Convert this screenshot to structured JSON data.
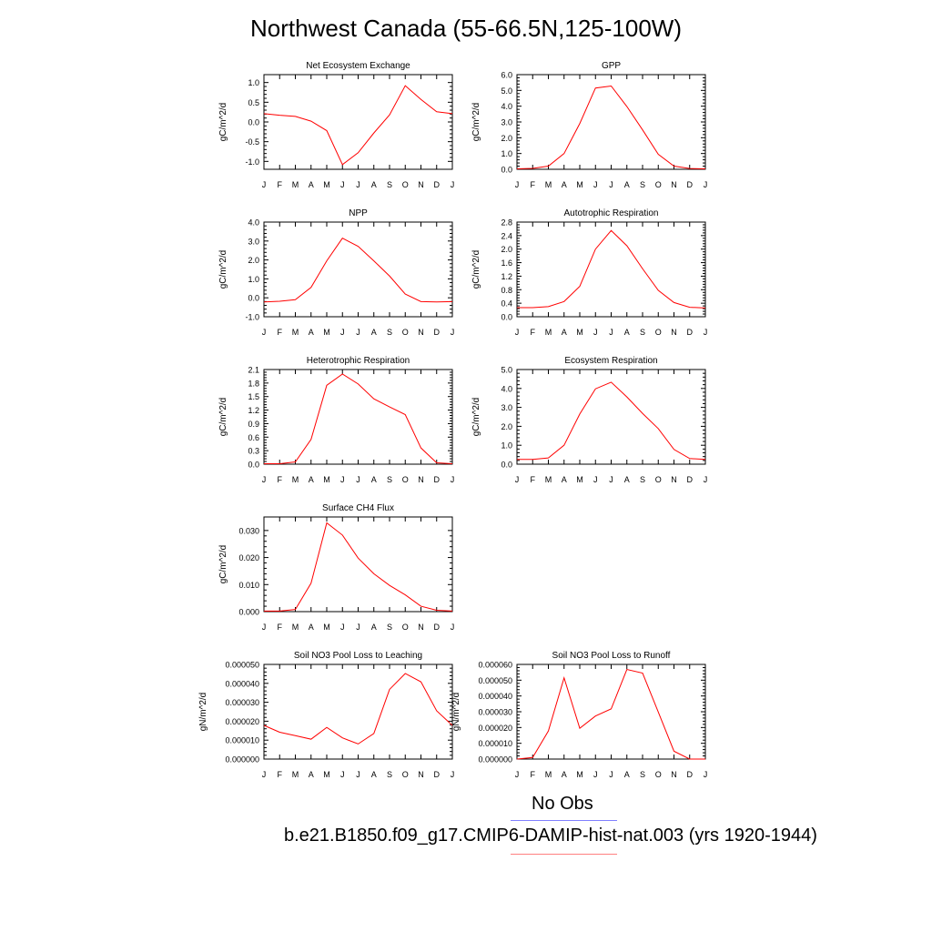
{
  "page": {
    "title": "Northwest Canada (55-66.5N,125-100W)"
  },
  "legend": [
    {
      "label": "No Obs",
      "color": "#8080ff"
    },
    {
      "label": "b.e21.B1850.f09_g17.CMIP6-DAMIP-hist-nat.003 (yrs 1920-1944)",
      "color": "#ff8080"
    }
  ],
  "line_color": "#ff0000",
  "chart_data": [
    {
      "type": "line",
      "title": "Net Ecosystem Exchange",
      "ylabel": "gC/m^2/d",
      "categories": [
        "J",
        "F",
        "M",
        "A",
        "M",
        "J",
        "J",
        "A",
        "S",
        "O",
        "N",
        "D",
        "J"
      ],
      "ylim": [
        -1.2,
        1.2
      ],
      "yticks": [
        -1.0,
        -0.5,
        0.0,
        0.5,
        1.0
      ],
      "ytick_labels": [
        "-1.0",
        "-0.5",
        "0.0",
        "0.5",
        "1.0"
      ],
      "values": [
        0.21,
        0.17,
        0.14,
        0.02,
        -0.22,
        -1.08,
        -0.78,
        -0.28,
        0.18,
        0.92,
        0.57,
        0.26,
        0.21
      ]
    },
    {
      "type": "line",
      "title": "GPP",
      "ylabel": "gC/m^2/d",
      "categories": [
        "J",
        "F",
        "M",
        "A",
        "M",
        "J",
        "J",
        "A",
        "S",
        "O",
        "N",
        "D",
        "J"
      ],
      "ylim": [
        0.0,
        6.0
      ],
      "yticks": [
        0.0,
        1.0,
        2.0,
        3.0,
        4.0,
        5.0,
        6.0
      ],
      "ytick_labels": [
        "0.0",
        "1.0",
        "2.0",
        "3.0",
        "4.0",
        "5.0",
        "6.0"
      ],
      "values": [
        0.03,
        0.06,
        0.2,
        1.0,
        2.9,
        5.15,
        5.28,
        3.98,
        2.5,
        0.95,
        0.2,
        0.05,
        0.03
      ]
    },
    {
      "type": "line",
      "title": "NPP",
      "ylabel": "gC/m^2/d",
      "categories": [
        "J",
        "F",
        "M",
        "A",
        "M",
        "J",
        "J",
        "A",
        "S",
        "O",
        "N",
        "D",
        "J"
      ],
      "ylim": [
        -1.0,
        4.0
      ],
      "yticks": [
        -1.0,
        0.0,
        1.0,
        2.0,
        3.0,
        4.0
      ],
      "ytick_labels": [
        "-1.0",
        "0.0",
        "1.0",
        "2.0",
        "3.0",
        "4.0"
      ],
      "values": [
        -0.22,
        -0.18,
        -0.1,
        0.55,
        1.95,
        3.15,
        2.72,
        1.95,
        1.15,
        0.2,
        -0.2,
        -0.22,
        -0.2
      ]
    },
    {
      "type": "line",
      "title": "Autotrophic Respiration",
      "ylabel": "gC/m^2/d",
      "categories": [
        "J",
        "F",
        "M",
        "A",
        "M",
        "J",
        "J",
        "A",
        "S",
        "O",
        "N",
        "D",
        "J"
      ],
      "ylim": [
        0.0,
        2.8
      ],
      "yticks": [
        0.0,
        0.4,
        0.8,
        1.2,
        1.6,
        2.0,
        2.4,
        2.8
      ],
      "ytick_labels": [
        "0.0",
        "0.4",
        "0.8",
        "1.2",
        "1.6",
        "2.0",
        "2.4",
        "2.8"
      ],
      "values": [
        0.27,
        0.27,
        0.3,
        0.45,
        0.9,
        2.0,
        2.55,
        2.1,
        1.42,
        0.78,
        0.42,
        0.28,
        0.26
      ]
    },
    {
      "type": "line",
      "title": "Heterotrophic Respiration",
      "ylabel": "gC/m^2/d",
      "categories": [
        "J",
        "F",
        "M",
        "A",
        "M",
        "J",
        "J",
        "A",
        "S",
        "O",
        "N",
        "D",
        "J"
      ],
      "ylim": [
        0.0,
        2.1
      ],
      "yticks": [
        0.0,
        0.3,
        0.6,
        0.9,
        1.2,
        1.5,
        1.8,
        2.1
      ],
      "ytick_labels": [
        "0.0",
        "0.3",
        "0.6",
        "0.9",
        "1.2",
        "1.5",
        "1.8",
        "2.1"
      ],
      "values": [
        0.01,
        0.01,
        0.05,
        0.55,
        1.75,
        2.0,
        1.78,
        1.45,
        1.27,
        1.1,
        0.36,
        0.03,
        0.01
      ]
    },
    {
      "type": "line",
      "title": "Ecosystem Respiration",
      "ylabel": "gC/m^2/d",
      "categories": [
        "J",
        "F",
        "M",
        "A",
        "M",
        "J",
        "J",
        "A",
        "S",
        "O",
        "N",
        "D",
        "J"
      ],
      "ylim": [
        0.0,
        5.0
      ],
      "yticks": [
        0.0,
        1.0,
        2.0,
        3.0,
        4.0,
        5.0
      ],
      "ytick_labels": [
        "0.0",
        "1.0",
        "2.0",
        "3.0",
        "4.0",
        "5.0"
      ],
      "values": [
        0.25,
        0.25,
        0.33,
        1.0,
        2.65,
        3.98,
        4.33,
        3.55,
        2.68,
        1.88,
        0.78,
        0.3,
        0.25
      ]
    },
    {
      "type": "line",
      "title": "Surface CH4 Flux",
      "ylabel": "gC/m^2/d",
      "categories": [
        "J",
        "F",
        "M",
        "A",
        "M",
        "J",
        "J",
        "A",
        "S",
        "O",
        "N",
        "D",
        "J"
      ],
      "ylim": [
        0.0,
        0.035
      ],
      "yticks": [
        0.0,
        0.01,
        0.02,
        0.03
      ],
      "ytick_labels": [
        "0.000",
        "0.010",
        "0.020",
        "0.030"
      ],
      "values": [
        0.0002,
        0.0002,
        0.0008,
        0.0105,
        0.0328,
        0.0283,
        0.0198,
        0.014,
        0.0097,
        0.0062,
        0.002,
        0.0005,
        0.0002
      ]
    },
    {
      "type": "line",
      "title": "Soil NO3 Pool Loss to Leaching",
      "ylabel": "gN/m^2/d",
      "categories": [
        "J",
        "F",
        "M",
        "A",
        "M",
        "J",
        "J",
        "A",
        "S",
        "O",
        "N",
        "D",
        "J"
      ],
      "ylim": [
        0.0,
        5e-05
      ],
      "yticks": [
        0.0,
        1e-05,
        2e-05,
        3e-05,
        4e-05,
        5e-05
      ],
      "ytick_labels": [
        "0.000000",
        "0.000010",
        "0.000020",
        "0.000030",
        "0.000040",
        "0.000050"
      ],
      "values": [
        1.78e-05,
        1.42e-05,
        1.24e-05,
        1.05e-05,
        1.67e-05,
        1.12e-05,
        8e-06,
        1.35e-05,
        3.68e-05,
        4.52e-05,
        4.08e-05,
        2.55e-05,
        1.78e-05
      ]
    },
    {
      "type": "line",
      "title": "Soil NO3 Pool Loss to Runoff",
      "ylabel": "gN/m^2/d",
      "categories": [
        "J",
        "F",
        "M",
        "A",
        "M",
        "J",
        "J",
        "A",
        "S",
        "O",
        "N",
        "D",
        "J"
      ],
      "ylim": [
        0.0,
        6e-05
      ],
      "yticks": [
        0.0,
        1e-05,
        2e-05,
        3e-05,
        4e-05,
        5e-05,
        6e-05
      ],
      "ytick_labels": [
        "0.000000",
        "0.000010",
        "0.000020",
        "0.000030",
        "0.000040",
        "0.000050",
        "0.000060"
      ],
      "values": [
        0.0,
        1e-06,
        1.78e-05,
        5.15e-05,
        1.95e-05,
        2.73e-05,
        3.18e-05,
        5.68e-05,
        5.45e-05,
        2.98e-05,
        5e-06,
        0.0,
        0.0
      ]
    }
  ]
}
